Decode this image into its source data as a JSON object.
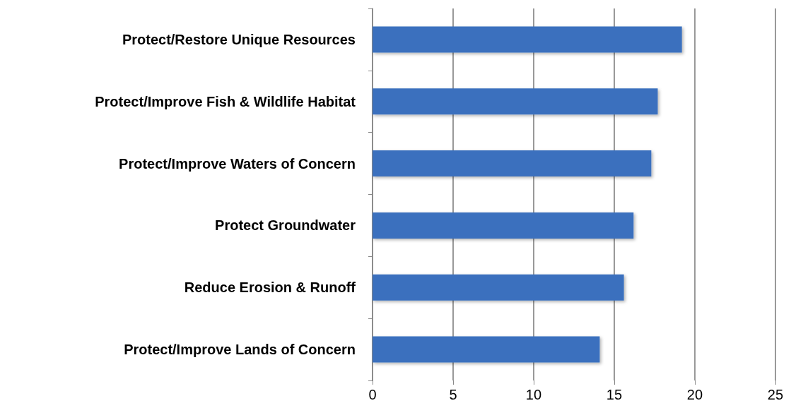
{
  "chart_data": {
    "type": "bar",
    "orientation": "horizontal",
    "categories": [
      "Protect/Restore Unique Resources",
      "Protect/Improve Fish & Wildlife Habitat",
      "Protect/Improve Waters of Concern",
      "Protect Groundwater",
      "Reduce Erosion & Runoff",
      "Protect/Improve Lands of Concern"
    ],
    "values": [
      19.2,
      17.7,
      17.3,
      16.2,
      15.6,
      14.1
    ],
    "color": "#3a70be",
    "xlim": [
      0,
      25
    ],
    "xticks": [
      0,
      5,
      10,
      15,
      20,
      25
    ],
    "grid": "x"
  }
}
